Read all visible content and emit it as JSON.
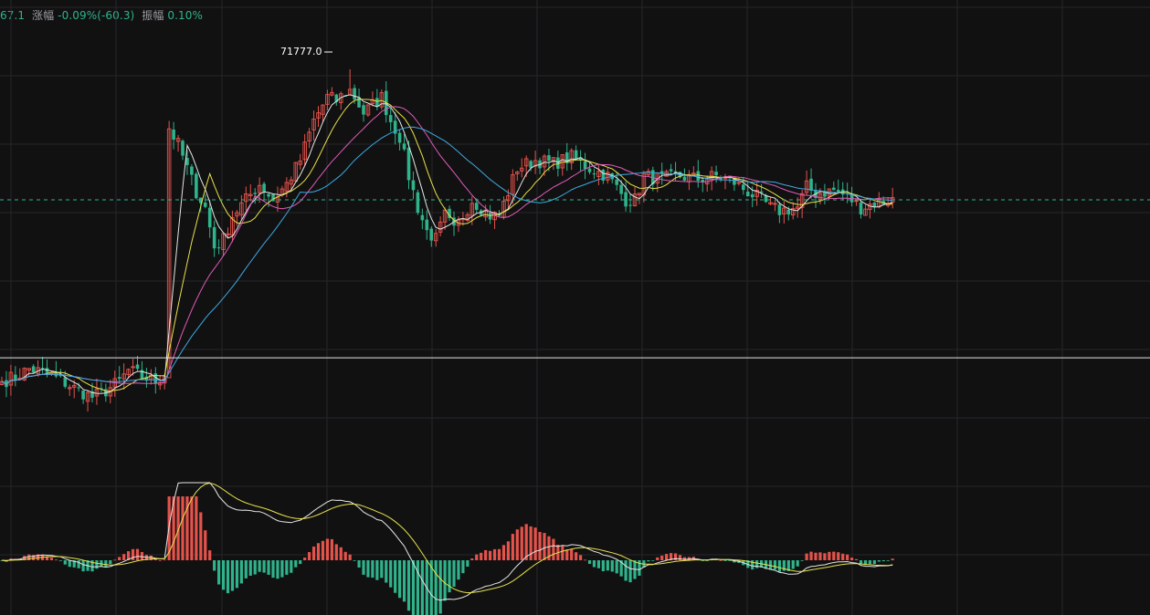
{
  "info_bar": {
    "price_tail": "67.1",
    "change_label": "涨幅",
    "change_value": "-0.09%(-60.3)",
    "amplitude_label": "振幅",
    "amplitude_value": "0.10%"
  },
  "colors": {
    "background": "#111112",
    "grid": "#262629",
    "up": "#e5534b",
    "down": "#2fb38a",
    "ma_fast": "#e6e6e6",
    "ma_mid": "#e8e24a",
    "ma_slow": "#e05bb8",
    "ma_long": "#3ea9e0",
    "reference_line": "#e6e6e6",
    "current_price_line": "#2fb38a"
  },
  "chart_data": [
    {
      "type": "candlestick",
      "title": "",
      "price_range": [
        69500,
        72100
      ],
      "max_marker": {
        "label": "71777.0",
        "value": 71777.0
      },
      "reference_price": 69950,
      "current_price": 70950,
      "legend": "none",
      "grid": true,
      "keyframes": {
        "description_units": "bar index (0-197) : close price",
        "points": [
          [
            0,
            69800
          ],
          [
            3,
            69830
          ],
          [
            6,
            69880
          ],
          [
            10,
            69850
          ],
          [
            14,
            69790
          ],
          [
            17,
            69740
          ],
          [
            20,
            69700
          ],
          [
            23,
            69740
          ],
          [
            26,
            69800
          ],
          [
            28,
            69870
          ],
          [
            31,
            69830
          ],
          [
            34,
            69800
          ],
          [
            36,
            69850
          ],
          [
            37,
            71400
          ],
          [
            39,
            71300
          ],
          [
            41,
            71150
          ],
          [
            43,
            71000
          ],
          [
            45,
            70900
          ],
          [
            47,
            70650
          ],
          [
            49,
            70700
          ],
          [
            51,
            70850
          ],
          [
            54,
            70950
          ],
          [
            57,
            71050
          ],
          [
            60,
            70950
          ],
          [
            63,
            71050
          ],
          [
            66,
            71200
          ],
          [
            69,
            71450
          ],
          [
            72,
            71600
          ],
          [
            74,
            71580
          ],
          [
            77,
            71650
          ],
          [
            80,
            71500
          ],
          [
            82,
            71550
          ],
          [
            84,
            71600
          ],
          [
            86,
            71450
          ],
          [
            88,
            71350
          ],
          [
            90,
            71100
          ],
          [
            92,
            70900
          ],
          [
            94,
            70750
          ],
          [
            96,
            70700
          ],
          [
            98,
            70850
          ],
          [
            100,
            70750
          ],
          [
            102,
            70850
          ],
          [
            104,
            70950
          ],
          [
            106,
            70900
          ],
          [
            108,
            70850
          ],
          [
            110,
            70850
          ],
          [
            112,
            71000
          ],
          [
            114,
            71150
          ],
          [
            118,
            71200
          ],
          [
            122,
            71180
          ],
          [
            126,
            71220
          ],
          [
            130,
            71150
          ],
          [
            134,
            71100
          ],
          [
            138,
            70950
          ],
          [
            140,
            70950
          ],
          [
            142,
            71100
          ],
          [
            146,
            71080
          ],
          [
            150,
            71100
          ],
          [
            154,
            71080
          ],
          [
            158,
            71100
          ],
          [
            162,
            71060
          ],
          [
            165,
            71000
          ],
          [
            168,
            70950
          ],
          [
            170,
            70900
          ],
          [
            172,
            70880
          ],
          [
            176,
            70900
          ],
          [
            178,
            71030
          ],
          [
            180,
            70990
          ],
          [
            184,
            71010
          ],
          [
            187,
            70970
          ],
          [
            190,
            70900
          ],
          [
            193,
            70930
          ],
          [
            197,
            70950
          ]
        ]
      },
      "moving_averages": [
        {
          "period": 5,
          "color_key": "ma_fast"
        },
        {
          "period": 10,
          "color_key": "ma_mid"
        },
        {
          "period": 20,
          "color_key": "ma_slow"
        },
        {
          "period": 30,
          "color_key": "ma_long"
        }
      ]
    },
    {
      "type": "bar",
      "title": "",
      "indicator": "macd_histogram_with_dif_dea",
      "grid": true
    }
  ]
}
